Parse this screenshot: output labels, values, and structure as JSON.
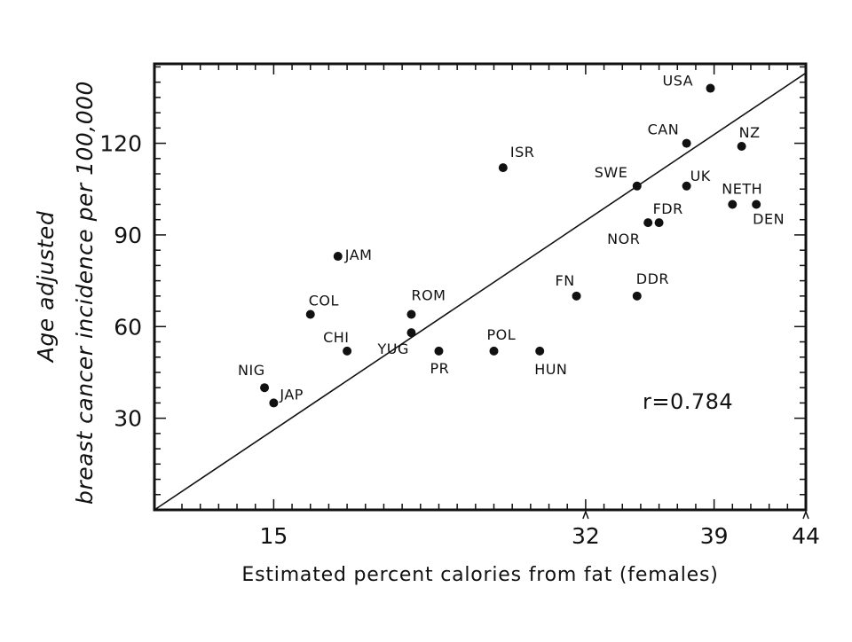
{
  "chart_data": {
    "type": "scatter",
    "title": "",
    "xlabel": "Estimated percent calories from fat (females)",
    "ylabel_line1": "Age adjusted",
    "ylabel_line2": "breast cancer incidence per 100,000",
    "xlim": [
      8.5,
      44
    ],
    "ylim": [
      0,
      146
    ],
    "x_ticks": [
      15,
      32,
      39,
      44
    ],
    "y_ticks": [
      30,
      60,
      90,
      120
    ],
    "correlation": "r=0.784",
    "fit_line": {
      "from": [
        8.5,
        0
      ],
      "to": [
        44,
        143
      ]
    },
    "points": [
      {
        "label": "USA",
        "x": 38.8,
        "y": 138
      },
      {
        "label": "CAN",
        "x": 37.5,
        "y": 120
      },
      {
        "label": "NZ",
        "x": 40.5,
        "y": 119
      },
      {
        "label": "UK",
        "x": 37.5,
        "y": 106
      },
      {
        "label": "SWE",
        "x": 34.8,
        "y": 106
      },
      {
        "label": "NETH",
        "x": 40.0,
        "y": 100
      },
      {
        "label": "DEN",
        "x": 41.3,
        "y": 100
      },
      {
        "label": "FDR",
        "x": 36.0,
        "y": 94
      },
      {
        "label": "NOR",
        "x": 35.4,
        "y": 94
      },
      {
        "label": "ISR",
        "x": 27.5,
        "y": 112
      },
      {
        "label": "DDR",
        "x": 34.8,
        "y": 70
      },
      {
        "label": "FN",
        "x": 31.5,
        "y": 70
      },
      {
        "label": "JAM",
        "x": 18.5,
        "y": 83
      },
      {
        "label": "ROM",
        "x": 22.5,
        "y": 64
      },
      {
        "label": "COL",
        "x": 17.0,
        "y": 64
      },
      {
        "label": "YUG",
        "x": 22.5,
        "y": 58
      },
      {
        "label": "CHI",
        "x": 19.0,
        "y": 52
      },
      {
        "label": "PR",
        "x": 24.0,
        "y": 52
      },
      {
        "label": "POL",
        "x": 27.0,
        "y": 52
      },
      {
        "label": "HUN",
        "x": 29.5,
        "y": 52
      },
      {
        "label": "NIG",
        "x": 14.5,
        "y": 40
      },
      {
        "label": "JAP",
        "x": 15.0,
        "y": 35
      }
    ]
  }
}
